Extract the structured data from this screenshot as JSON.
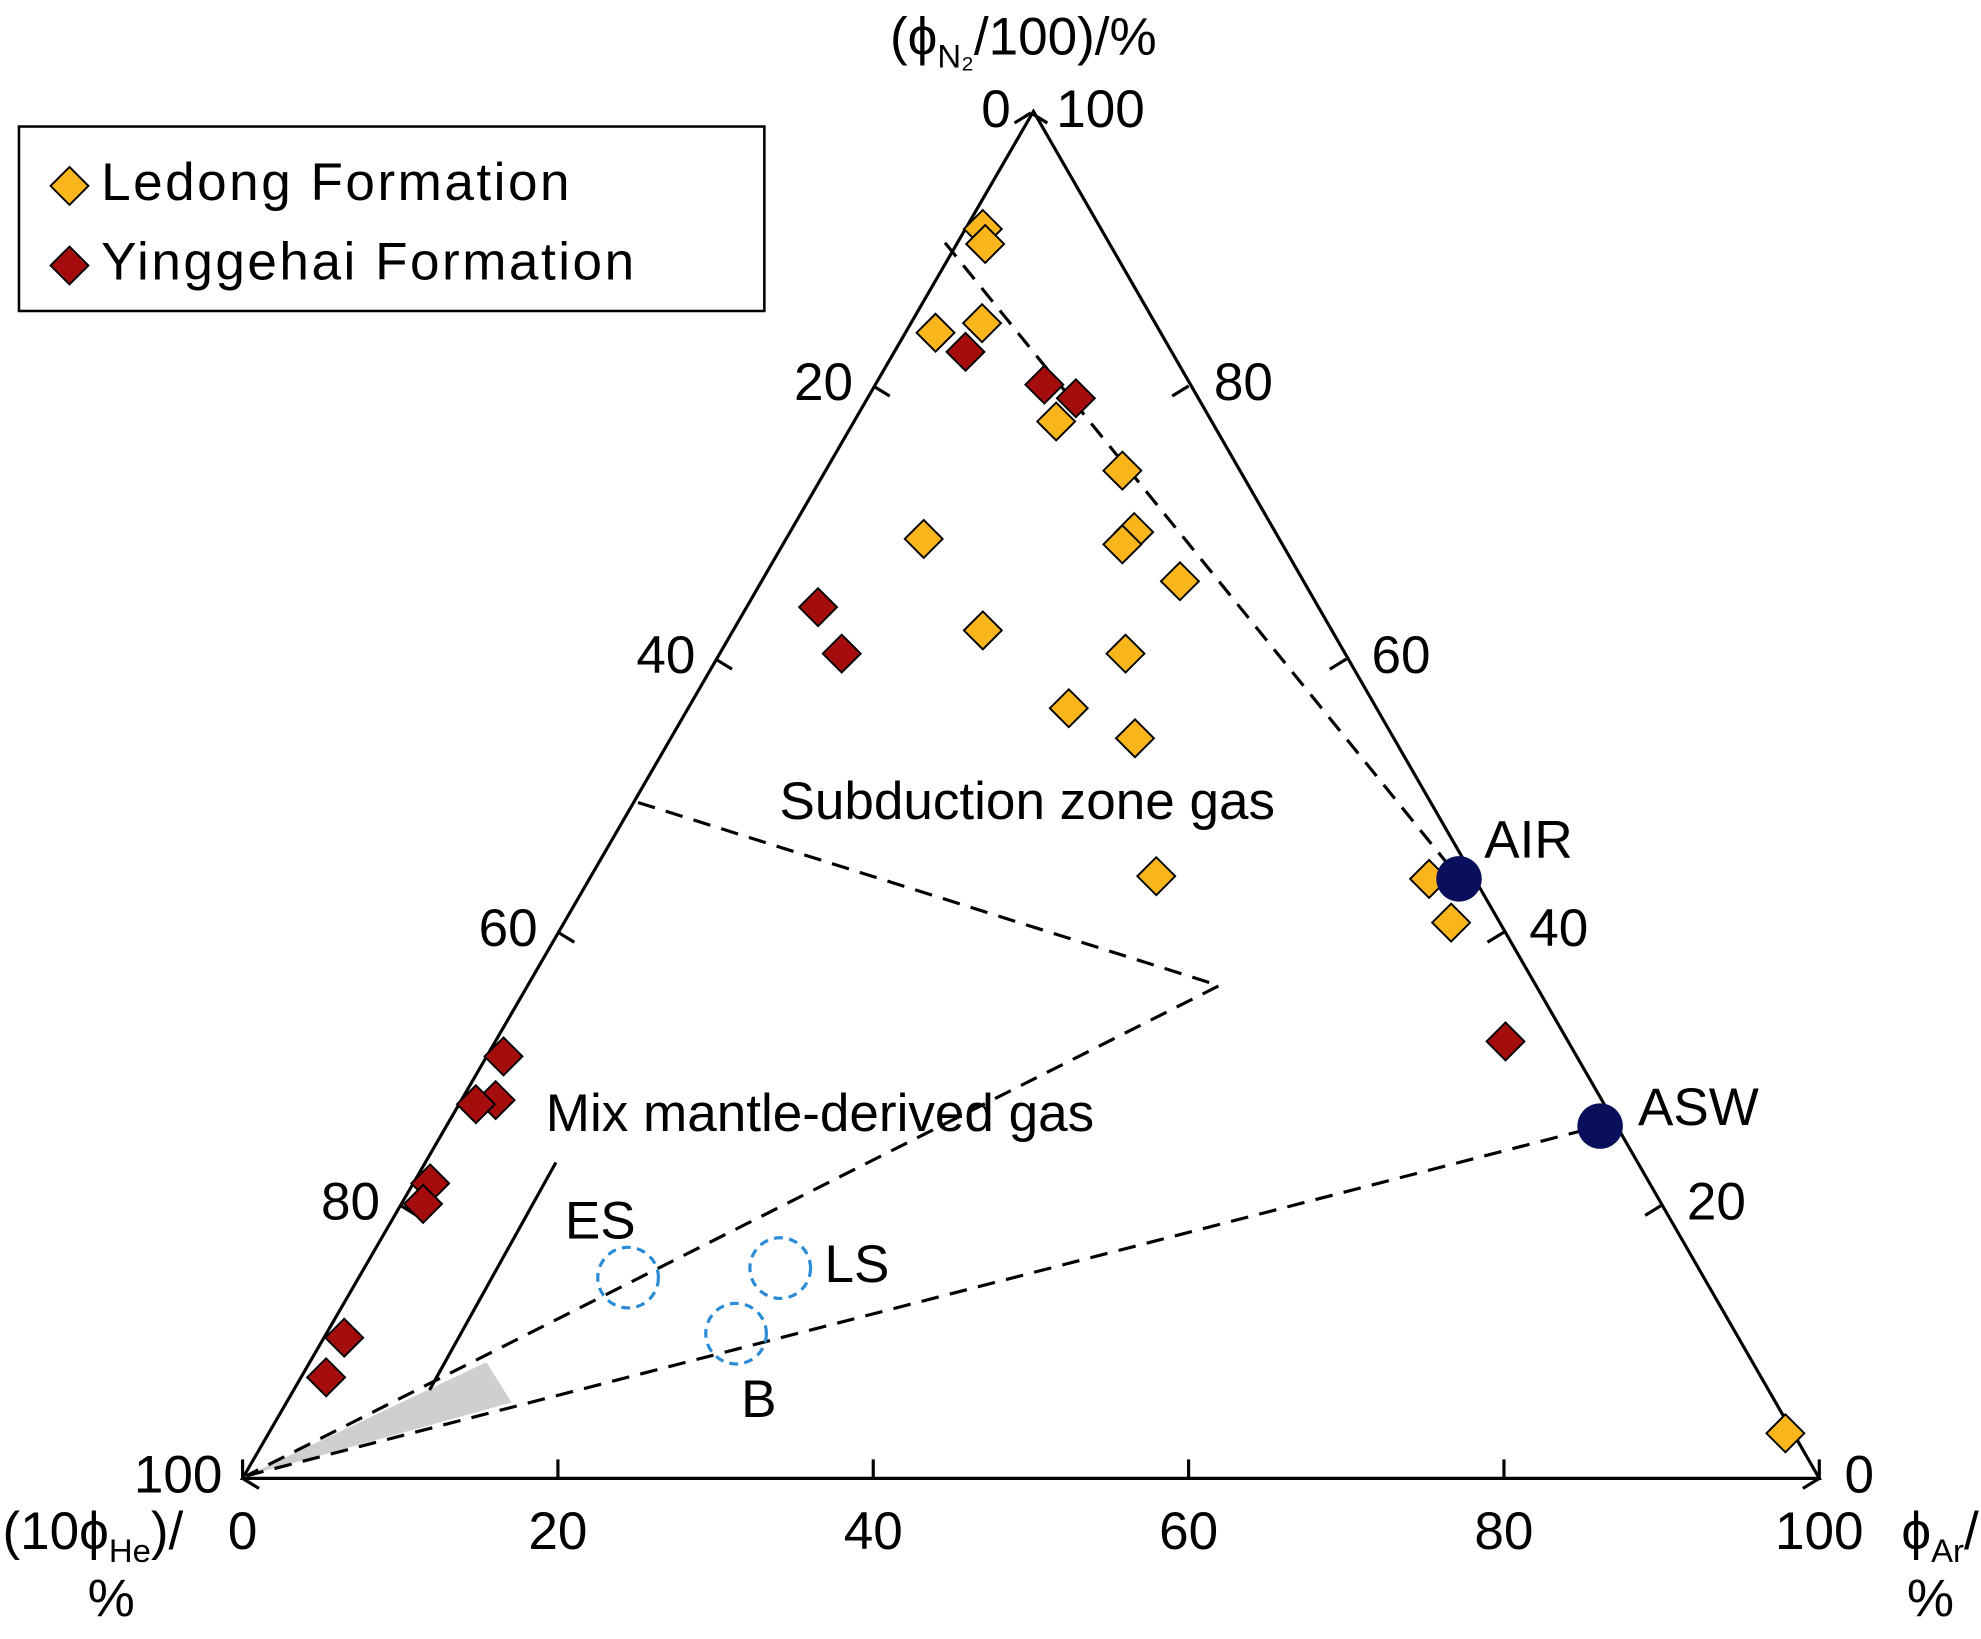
{
  "chart_data": {
    "type": "ternary",
    "right_axis": {
      "title_parts": [
        "(ϕ",
        "N₂",
        "/100)/%"
      ],
      "ticks": [
        0,
        20,
        40,
        60,
        80,
        100
      ]
    },
    "left_axis": {
      "title_parts": [
        "(10ϕ",
        "He",
        ")/"
      ],
      "title_unit": "%",
      "ticks": [
        0,
        20,
        40,
        60,
        80,
        100
      ]
    },
    "bottom_axis": {
      "title_parts": [
        "ϕ",
        "Ar",
        "/"
      ],
      "title_unit": "%",
      "ticks": [
        0,
        20,
        40,
        60,
        80,
        100
      ]
    },
    "series": [
      {
        "name": "Ledong Formation",
        "color": "#f9b51c",
        "marker": "diamond",
        "he": [
          7.3,
          7.7,
          14.1,
          10.8,
          9.7,
          7.3,
          8.8,
          10.0,
          22.4,
          7.7,
          22.0,
          13.8,
          19.4,
          16.3,
          20.0,
          2.8,
          3.0,
          0.5
        ],
        "ar": [
          1.2,
          1.9,
          2.0,
          4.6,
          12.9,
          18.9,
          21.9,
          21.6,
          8.8,
          26.6,
          15.9,
          25.8,
          24.2,
          29.5,
          35.9,
          53.3,
          56.3,
          96.2
        ],
        "n2": [
          91.5,
          90.4,
          83.9,
          84.6,
          77.4,
          73.8,
          69.3,
          68.4,
          68.8,
          65.7,
          62.1,
          60.4,
          56.4,
          54.2,
          44.1,
          43.9,
          40.7,
          3.3
        ]
      },
      {
        "name": "Yinggehai Formation",
        "color": "#a50d0d",
        "marker": "diamond",
        "he": [
          12.9,
          9.1,
          7.6,
          31.6,
          31.8,
          68.0,
          70.1,
          71.5,
          77.3,
          78.5,
          88.4,
          91.0,
          3.9
        ],
        "ar": [
          4.6,
          10.8,
          13.3,
          4.6,
          7.8,
          1.1,
          2.2,
          1.1,
          1.1,
          1.4,
          1.3,
          1.6,
          64.1
        ],
        "n2": [
          82.5,
          80.1,
          79.1,
          63.8,
          60.4,
          30.9,
          27.7,
          27.4,
          21.6,
          20.1,
          10.3,
          7.4,
          32.0
        ]
      }
    ],
    "end_members": [
      {
        "label": "AIR",
        "color": "#0a0f5c",
        "he": 0.9,
        "ar": 55.2,
        "n2": 43.9
      },
      {
        "label": "ASW",
        "color": "#0a0f5c",
        "he": 1.0,
        "ar": 73.2,
        "n2": 25.8
      }
    ],
    "fields": [
      {
        "label": "ES",
        "color": "#2a8bd6",
        "he": 68.2,
        "ar": 17.1,
        "n2": 14.7
      },
      {
        "label": "LS",
        "color": "#2a8bd6",
        "he": 58.2,
        "ar": 26.4,
        "n2": 15.4
      },
      {
        "label": "B",
        "color": "#2a8bd6",
        "he": 63.4,
        "ar": 26.0,
        "n2": 10.6
      }
    ],
    "annotations": [
      "Subduction zone gas",
      "Mix mantle-derived gas"
    ]
  }
}
